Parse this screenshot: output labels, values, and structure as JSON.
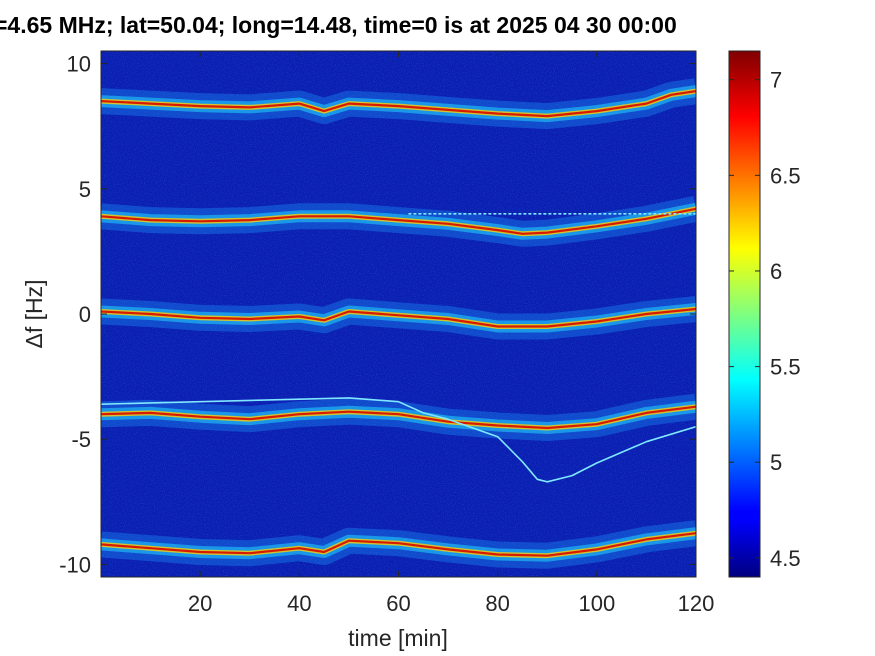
{
  "chart_data": {
    "type": "heatmap",
    "title": "=4.65 MHz;  lat=50.04; long=14.48, time=0 is at 2025 04 30 00:00",
    "xlabel": "time [min]",
    "ylabel": "Δf [Hz]",
    "xlim": [
      0,
      120
    ],
    "ylim": [
      -10.5,
      10.5
    ],
    "x_ticks": [
      20,
      40,
      60,
      80,
      100,
      120
    ],
    "y_ticks": [
      10,
      5,
      0,
      -5,
      -10
    ],
    "colorbar": {
      "range": [
        4.4,
        7.15
      ],
      "ticks": [
        4.5,
        5,
        5.5,
        6,
        6.5,
        7
      ],
      "colormap": "jet"
    },
    "series": [
      {
        "points": [
          [
            0,
            8.5
          ],
          [
            10,
            8.4
          ],
          [
            20,
            8.3
          ],
          [
            30,
            8.25
          ],
          [
            40,
            8.4
          ],
          [
            45,
            8.1
          ],
          [
            50,
            8.4
          ],
          [
            60,
            8.3
          ],
          [
            70,
            8.15
          ],
          [
            80,
            8.0
          ],
          [
            90,
            7.9
          ],
          [
            100,
            8.1
          ],
          [
            110,
            8.4
          ],
          [
            115,
            8.75
          ],
          [
            120,
            8.9
          ]
        ]
      },
      {
        "points": [
          [
            0,
            3.9
          ],
          [
            10,
            3.75
          ],
          [
            20,
            3.7
          ],
          [
            30,
            3.75
          ],
          [
            40,
            3.9
          ],
          [
            50,
            3.9
          ],
          [
            60,
            3.75
          ],
          [
            70,
            3.6
          ],
          [
            80,
            3.35
          ],
          [
            85,
            3.2
          ],
          [
            90,
            3.25
          ],
          [
            100,
            3.5
          ],
          [
            110,
            3.8
          ],
          [
            120,
            4.2
          ]
        ]
      },
      {
        "points": [
          [
            0,
            0.1
          ],
          [
            10,
            0.0
          ],
          [
            20,
            -0.15
          ],
          [
            30,
            -0.2
          ],
          [
            40,
            -0.1
          ],
          [
            45,
            -0.25
          ],
          [
            50,
            0.1
          ],
          [
            60,
            -0.05
          ],
          [
            70,
            -0.2
          ],
          [
            80,
            -0.5
          ],
          [
            90,
            -0.5
          ],
          [
            100,
            -0.3
          ],
          [
            110,
            0.0
          ],
          [
            120,
            0.2
          ]
        ]
      },
      {
        "points": [
          [
            0,
            -4.0
          ],
          [
            10,
            -3.95
          ],
          [
            20,
            -4.1
          ],
          [
            30,
            -4.2
          ],
          [
            40,
            -4.0
          ],
          [
            50,
            -3.9
          ],
          [
            60,
            -4.0
          ],
          [
            70,
            -4.3
          ],
          [
            80,
            -4.45
          ],
          [
            90,
            -4.55
          ],
          [
            100,
            -4.4
          ],
          [
            110,
            -3.95
          ],
          [
            120,
            -3.7
          ]
        ]
      },
      {
        "points": [
          [
            0,
            -9.2
          ],
          [
            10,
            -9.35
          ],
          [
            20,
            -9.5
          ],
          [
            30,
            -9.55
          ],
          [
            40,
            -9.35
          ],
          [
            45,
            -9.5
          ],
          [
            50,
            -9.05
          ],
          [
            60,
            -9.15
          ],
          [
            70,
            -9.4
          ],
          [
            80,
            -9.6
          ],
          [
            90,
            -9.65
          ],
          [
            100,
            -9.4
          ],
          [
            110,
            -9.0
          ],
          [
            120,
            -8.75
          ]
        ]
      }
    ],
    "traces": [
      {
        "points": [
          [
            62,
            4.0
          ],
          [
            70,
            4.0
          ],
          [
            80,
            4.0
          ],
          [
            90,
            4.0
          ],
          [
            100,
            4.0
          ],
          [
            110,
            4.0
          ],
          [
            120,
            4.0
          ]
        ]
      },
      {
        "points": [
          [
            0,
            -3.6
          ],
          [
            10,
            -3.55
          ],
          [
            20,
            -3.5
          ],
          [
            30,
            -3.45
          ],
          [
            40,
            -3.4
          ],
          [
            50,
            -3.35
          ],
          [
            60,
            -3.5
          ],
          [
            65,
            -3.95
          ],
          [
            70,
            -4.2
          ],
          [
            80,
            -4.9
          ],
          [
            85,
            -5.9
          ],
          [
            88,
            -6.6
          ],
          [
            90,
            -6.7
          ],
          [
            95,
            -6.45
          ],
          [
            100,
            -5.95
          ],
          [
            110,
            -5.1
          ],
          [
            120,
            -4.5
          ]
        ]
      }
    ],
    "grid": false,
    "legend": "none"
  }
}
